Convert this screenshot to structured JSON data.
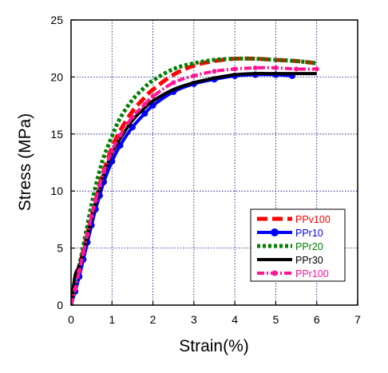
{
  "chart_data": {
    "type": "line",
    "xlabel": "Strain(%)",
    "ylabel": "Stress (MPa)",
    "xlim": [
      0,
      7
    ],
    "ylim": [
      0,
      25
    ],
    "x_ticks": [
      "0",
      "1",
      "2",
      "3",
      "4",
      "5",
      "6",
      "7"
    ],
    "y_ticks": [
      "0",
      "5",
      "10",
      "15",
      "20",
      "25"
    ],
    "grid": true,
    "legend_position": "bottom-right",
    "series": [
      {
        "name": "PPv100",
        "color": "#ff0000",
        "style": "dashed-thick",
        "x": [
          0,
          0.1,
          0.2,
          0.3,
          0.4,
          0.5,
          0.6,
          0.7,
          0.8,
          1.0,
          1.2,
          1.5,
          1.8,
          2.0,
          2.5,
          3.0,
          3.5,
          4.0,
          4.5,
          5.0,
          5.5,
          6.0
        ],
        "y": [
          0,
          2.0,
          3.4,
          4.8,
          6.3,
          7.8,
          9.2,
          10.6,
          11.8,
          13.8,
          15.3,
          17.0,
          18.2,
          18.9,
          20.2,
          21.0,
          21.4,
          21.6,
          21.6,
          21.5,
          21.4,
          21.2
        ]
      },
      {
        "name": "PPr10",
        "color": "#0000ff",
        "style": "solid-dots",
        "x": [
          0,
          0.1,
          0.2,
          0.3,
          0.4,
          0.5,
          0.6,
          0.7,
          0.8,
          1.0,
          1.2,
          1.5,
          1.8,
          2.0,
          2.5,
          3.0,
          3.5,
          4.0,
          4.5,
          5.0,
          5.4
        ],
        "y": [
          0,
          1.2,
          2.5,
          4.0,
          5.5,
          7.0,
          8.4,
          9.6,
          10.8,
          12.6,
          14.0,
          15.6,
          16.8,
          17.5,
          18.7,
          19.4,
          19.8,
          20.1,
          20.2,
          20.2,
          20.1
        ]
      },
      {
        "name": "PPr20",
        "color": "#008000",
        "style": "dotted-thick",
        "x": [
          0,
          0.1,
          0.2,
          0.3,
          0.4,
          0.5,
          0.6,
          0.7,
          0.8,
          1.0,
          1.2,
          1.5,
          1.8,
          2.0,
          2.5,
          3.0,
          3.5,
          4.0,
          4.5,
          5.0,
          5.5,
          6.0
        ],
        "y": [
          0,
          2.0,
          3.5,
          5.2,
          7.0,
          8.8,
          10.4,
          11.8,
          13.0,
          14.8,
          16.4,
          18.0,
          19.1,
          19.7,
          20.7,
          21.2,
          21.5,
          21.6,
          21.6,
          21.5,
          21.4,
          21.2
        ]
      },
      {
        "name": "PPr30",
        "color": "#000000",
        "style": "solid-thick",
        "x": [
          0,
          0.1,
          0.2,
          0.3,
          0.4,
          0.5,
          0.6,
          0.7,
          0.8,
          1.0,
          1.2,
          1.5,
          1.8,
          2.0,
          2.5,
          3.0,
          3.5,
          4.0,
          4.5,
          5.0,
          5.5,
          6.0
        ],
        "y": [
          0,
          2.6,
          3.4,
          4.6,
          6.0,
          7.6,
          9.0,
          10.3,
          11.5,
          13.3,
          14.6,
          16.2,
          17.3,
          17.9,
          18.9,
          19.5,
          19.9,
          20.2,
          20.3,
          20.3,
          20.3,
          20.3
        ]
      },
      {
        "name": "PPr100",
        "color": "#ff1493",
        "style": "dashdot-markers",
        "x": [
          0,
          0.1,
          0.2,
          0.3,
          0.4,
          0.5,
          0.6,
          0.7,
          0.8,
          1.0,
          1.2,
          1.5,
          1.8,
          2.0,
          2.5,
          3.0,
          3.5,
          4.0,
          4.5,
          5.0,
          5.5,
          6.0
        ],
        "y": [
          0,
          1.4,
          3.0,
          4.6,
          6.2,
          7.8,
          9.2,
          10.5,
          11.7,
          13.5,
          14.9,
          16.5,
          17.6,
          18.3,
          19.5,
          20.1,
          20.5,
          20.7,
          20.8,
          20.8,
          20.7,
          20.7
        ]
      }
    ]
  }
}
